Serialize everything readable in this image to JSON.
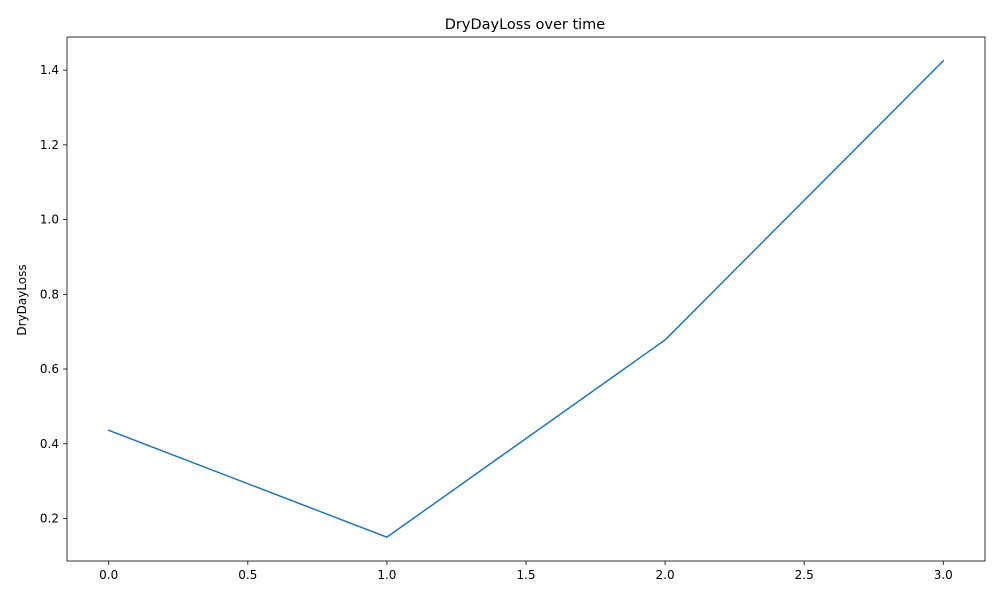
{
  "chart_data": {
    "type": "line",
    "title": "DryDayLoss over time",
    "xlabel": "",
    "ylabel": "DryDayLoss",
    "x": [
      0,
      1,
      2,
      3
    ],
    "series": [
      {
        "values": [
          0.436,
          0.15,
          0.678,
          1.425
        ],
        "color": "#1f77b4"
      }
    ],
    "xlim": [
      -0.15,
      3.15
    ],
    "ylim": [
      0.0862,
      1.4888
    ],
    "xticks": [
      0.0,
      0.5,
      1.0,
      1.5,
      2.0,
      2.5,
      3.0
    ],
    "xtick_labels": [
      "0.0",
      "0.5",
      "1.0",
      "1.5",
      "2.0",
      "2.5",
      "3.0"
    ],
    "yticks": [
      0.2,
      0.4,
      0.6,
      0.8,
      1.0,
      1.2,
      1.4
    ],
    "ytick_labels": [
      "0.2",
      "0.4",
      "0.6",
      "0.8",
      "1.0",
      "1.2",
      "1.4"
    ],
    "grid": false,
    "legend": "none"
  }
}
